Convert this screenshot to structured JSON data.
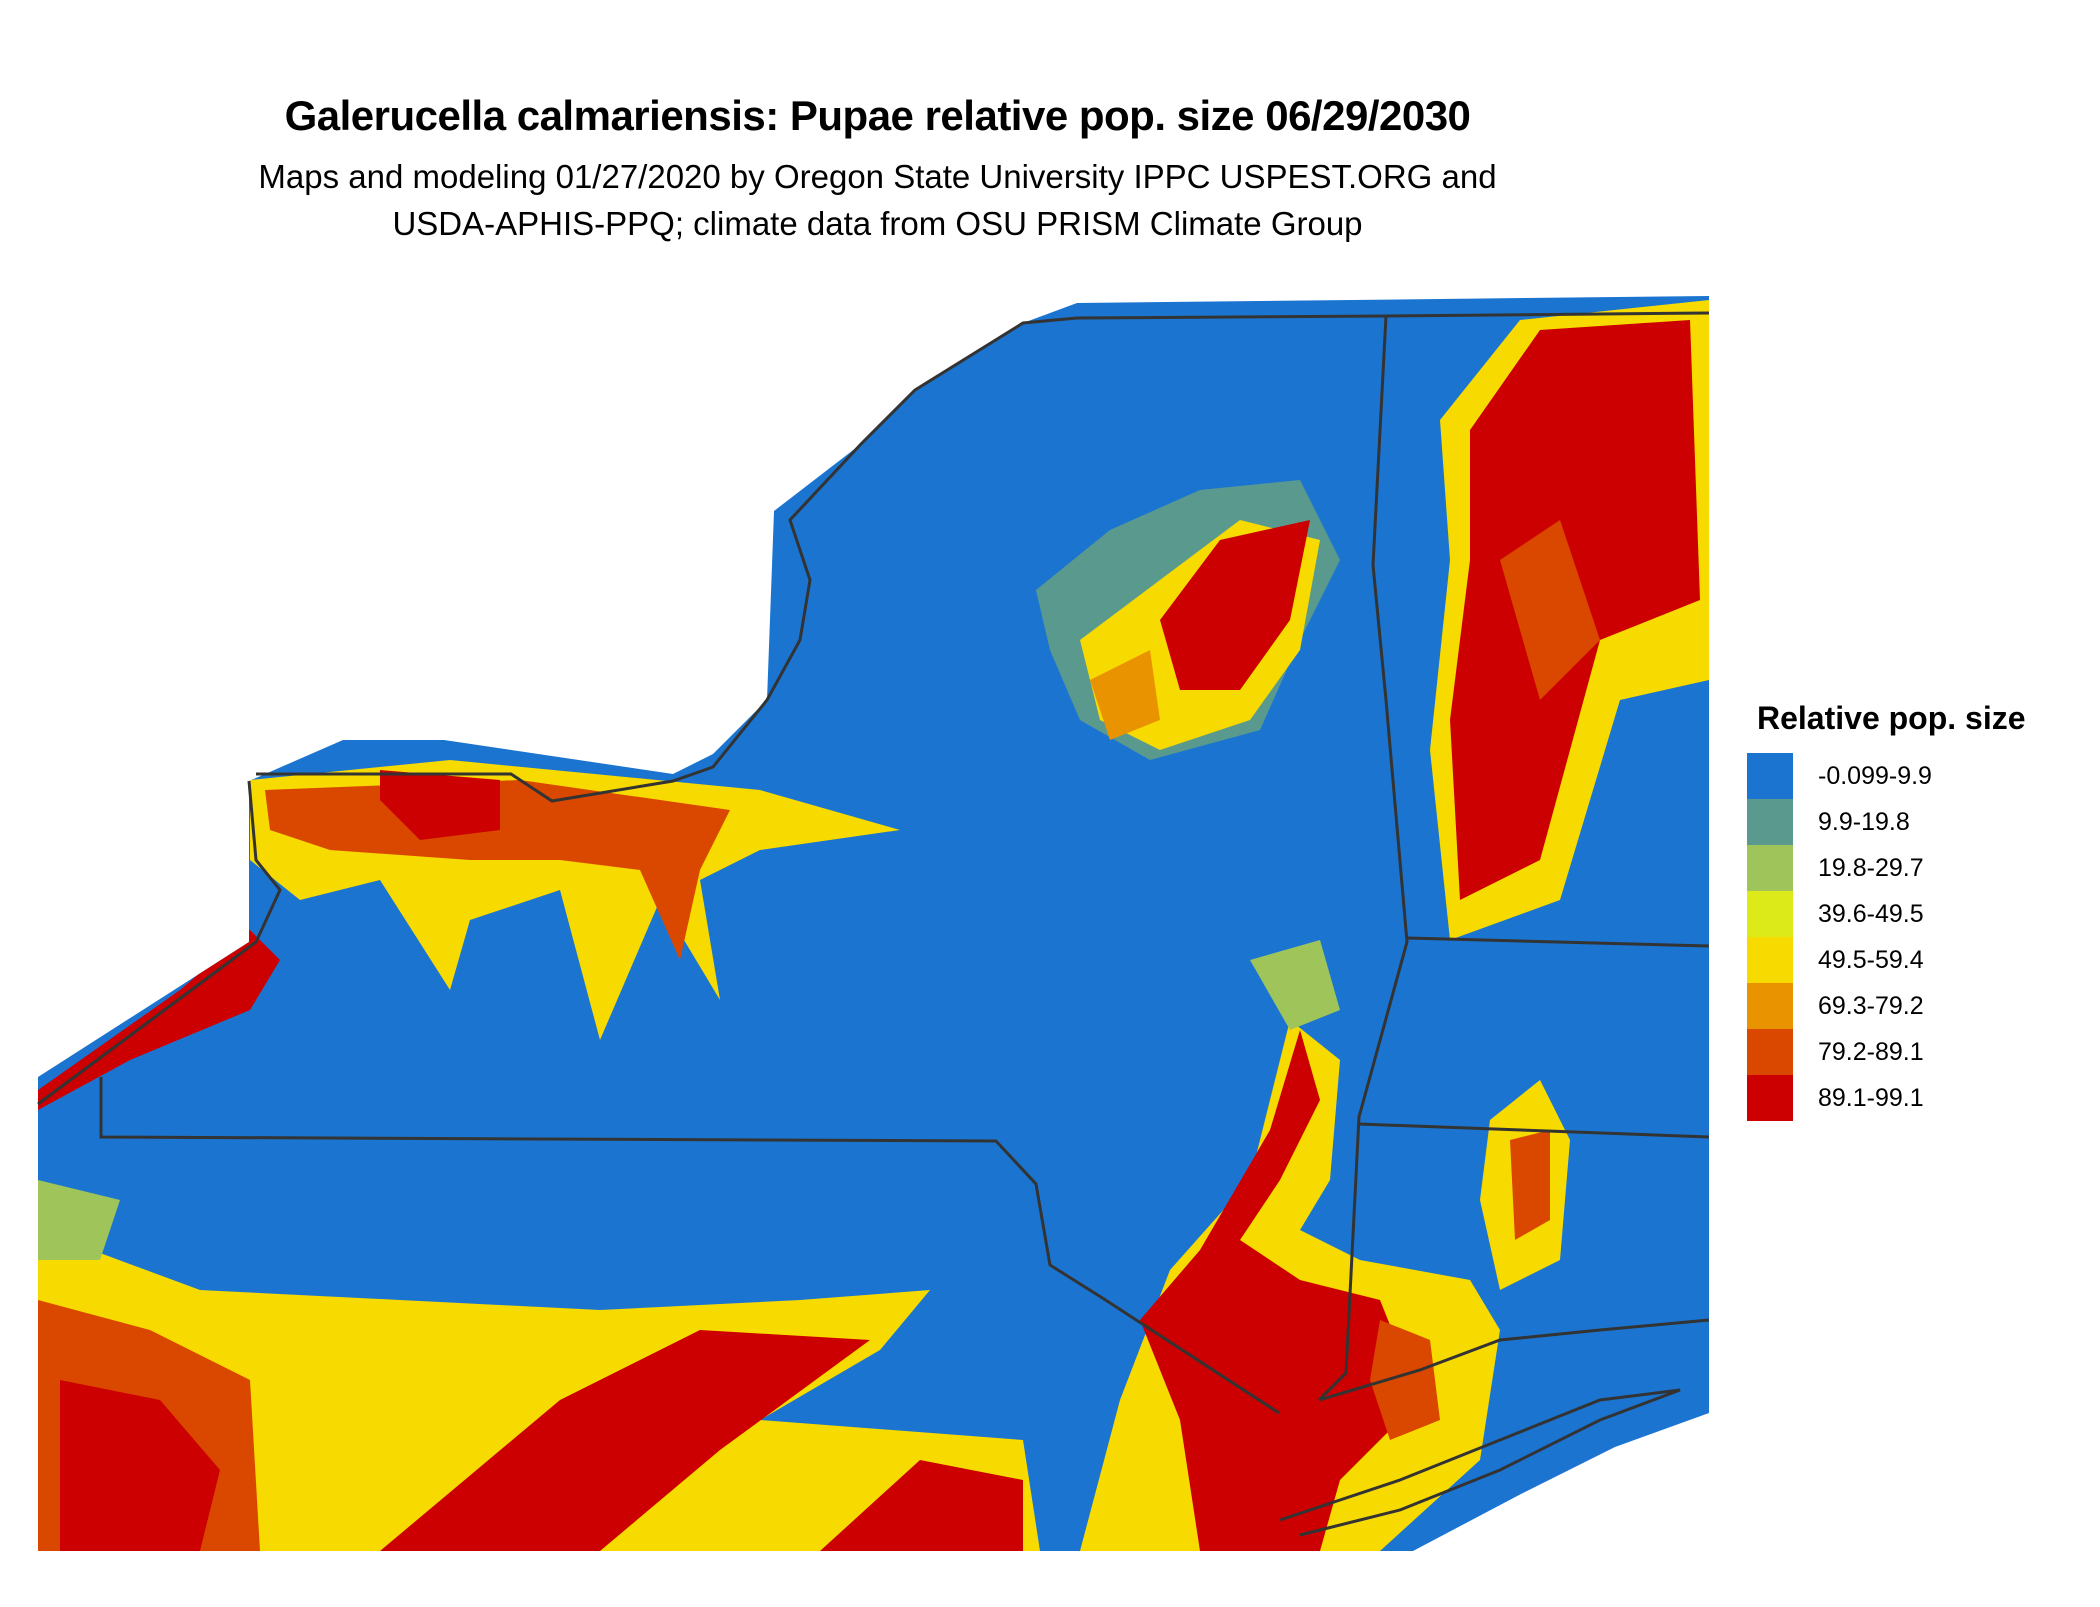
{
  "title": "Galerucella calmariensis: Pupae relative pop. size 06/29/2030",
  "subtitle_line1": "Maps and modeling 01/27/2020 by Oregon State University IPPC USPEST.ORG and",
  "subtitle_line2": "USDA-APHIS-PPQ; climate data from OSU PRISM Climate Group",
  "legend": {
    "title": "Relative pop. size",
    "items": [
      {
        "label": "-0.099-9.9",
        "color": "#1B75D0"
      },
      {
        "label": "9.9-19.8",
        "color": "#5A9A8E"
      },
      {
        "label": "19.8-29.7",
        "color": "#9EC45A"
      },
      {
        "label": "39.6-49.5",
        "color": "#DDEA1A"
      },
      {
        "label": "49.5-59.4",
        "color": "#F7DA00"
      },
      {
        "label": "69.3-79.2",
        "color": "#EA9300"
      },
      {
        "label": "79.2-89.1",
        "color": "#DA4800"
      },
      {
        "label": "89.1-99.1",
        "color": "#CC0000"
      }
    ]
  },
  "map": {
    "border_color": "#333333"
  }
}
